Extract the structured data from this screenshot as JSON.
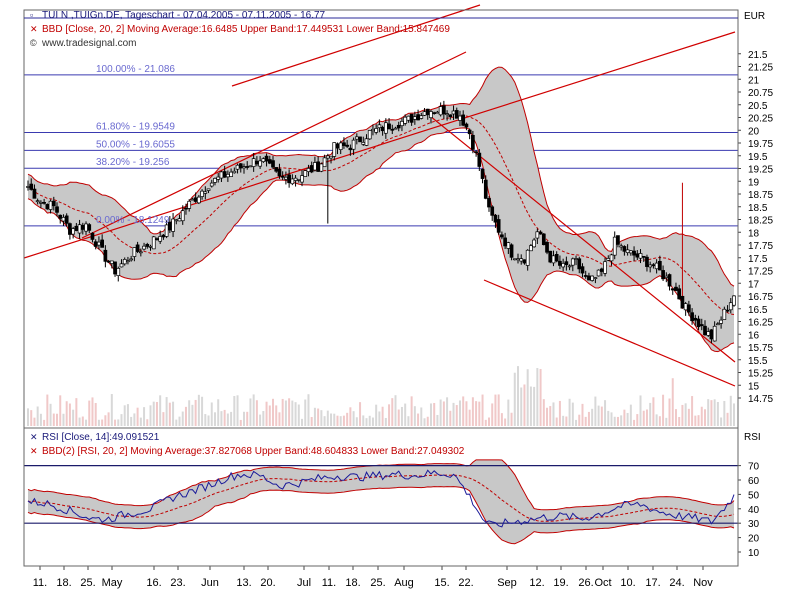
{
  "header": {
    "title": "TUI N ,TUIGn.DE, Tageschart - 07.04.2005 - 07.11.2005 - 16.77",
    "bollinger": "BBD [Close, 20, 2] Moving Average:16.6485 Upper Band:17.449531 Lower Band:15.847469",
    "source": "www.tradesignal.com",
    "currency": "EUR"
  },
  "rsi_header": {
    "title": "RSI [Close, 14]:49.091521",
    "bollinger": "BBD(2) [RSI, 20, 2] Moving Average:37.827068 Upper Band:48.604833 Lower Band:27.049302",
    "panel_label": "RSI"
  },
  "chart_data": {
    "type": "candlestick",
    "title": "TUI N ,TUIGn.DE, Tageschart - 07.04.2005 - 07.11.2005 - 16.77",
    "price_axis": {
      "ylim": [
        14.5,
        21.75
      ],
      "ticks": [
        "14.75",
        "15",
        "15.25",
        "15.5",
        "15.75",
        "16",
        "16.25",
        "16.5",
        "16.75",
        "17",
        "17.25",
        "17.5",
        "17.75",
        "18",
        "18.25",
        "18.5",
        "18.75",
        "19",
        "19.25",
        "19.5",
        "19.75",
        "20",
        "20.25",
        "20.5",
        "20.75",
        "21",
        "21.25",
        "21.5"
      ]
    },
    "x_axis_labels": [
      "11.",
      "18.",
      "25.",
      "May",
      "16.",
      "23.",
      "Jun",
      "13.",
      "20.",
      "Jul",
      "11.",
      "18.",
      "25.",
      "Aug",
      "15.",
      "22.",
      "Sep",
      "12.",
      "19.",
      "26.",
      "Oct",
      "10.",
      "17.",
      "24.",
      "Nov"
    ],
    "fibonacci": [
      {
        "label": "100.00% - 21.086",
        "value": 21.086
      },
      {
        "label": "61.80% - 19.9549",
        "value": 19.9549
      },
      {
        "label": "50.00% - 19.6055",
        "value": 19.6055
      },
      {
        "label": "38.20% - 19.256",
        "value": 19.256
      },
      {
        "label": "0.00% - 18.1249",
        "value": 18.1249
      }
    ],
    "close_anchors": [
      [
        0,
        18.9
      ],
      [
        4,
        18.6
      ],
      [
        8,
        18.5
      ],
      [
        13,
        18.05
      ],
      [
        18,
        18.15
      ],
      [
        23,
        17.6
      ],
      [
        27,
        17.25
      ],
      [
        32,
        17.55
      ],
      [
        38,
        17.8
      ],
      [
        44,
        18.1
      ],
      [
        50,
        18.55
      ],
      [
        56,
        18.95
      ],
      [
        62,
        19.15
      ],
      [
        67,
        19.3
      ],
      [
        72,
        19.45
      ],
      [
        78,
        19.05
      ],
      [
        84,
        19.1
      ],
      [
        90,
        19.3
      ],
      [
        95,
        19.65
      ],
      [
        100,
        19.7
      ],
      [
        106,
        19.95
      ],
      [
        112,
        20.1
      ],
      [
        118,
        20.2
      ],
      [
        124,
        20.4
      ],
      [
        130,
        20.4
      ],
      [
        134,
        20.3
      ],
      [
        137,
        19.95
      ],
      [
        140,
        19.3
      ],
      [
        143,
        18.4
      ],
      [
        146,
        18.05
      ],
      [
        150,
        17.6
      ],
      [
        154,
        17.5
      ],
      [
        158,
        18.0
      ],
      [
        162,
        17.5
      ],
      [
        166,
        17.3
      ],
      [
        170,
        17.4
      ],
      [
        174,
        17.0
      ],
      [
        178,
        17.2
      ],
      [
        182,
        17.8
      ],
      [
        186,
        17.6
      ],
      [
        190,
        17.5
      ],
      [
        194,
        17.35
      ],
      [
        198,
        17.1
      ],
      [
        201,
        16.85
      ],
      [
        204,
        16.5
      ],
      [
        207,
        16.3
      ],
      [
        210,
        16.05
      ],
      [
        212,
        15.95
      ],
      [
        215,
        16.3
      ],
      [
        219,
        16.77
      ]
    ],
    "rsi_axis": {
      "ylim": [
        0,
        75
      ],
      "ticks": [
        "10",
        "20",
        "30",
        "40",
        "50",
        "60",
        "70"
      ],
      "levels": [
        30,
        70
      ]
    },
    "rsi_anchors": [
      [
        0,
        45
      ],
      [
        5,
        44
      ],
      [
        10,
        41
      ],
      [
        15,
        37
      ],
      [
        20,
        33
      ],
      [
        25,
        33
      ],
      [
        30,
        36
      ],
      [
        38,
        40
      ],
      [
        45,
        48
      ],
      [
        52,
        53
      ],
      [
        58,
        58
      ],
      [
        62,
        62
      ],
      [
        66,
        64
      ],
      [
        72,
        63
      ],
      [
        78,
        56
      ],
      [
        84,
        58
      ],
      [
        90,
        61
      ],
      [
        96,
        63
      ],
      [
        102,
        62
      ],
      [
        108,
        63
      ],
      [
        114,
        64
      ],
      [
        120,
        63
      ],
      [
        126,
        65
      ],
      [
        132,
        64
      ],
      [
        135,
        55
      ],
      [
        138,
        45
      ],
      [
        141,
        33
      ],
      [
        144,
        28
      ],
      [
        148,
        30
      ],
      [
        154,
        32
      ],
      [
        160,
        34
      ],
      [
        166,
        35
      ],
      [
        172,
        33
      ],
      [
        178,
        37
      ],
      [
        184,
        42
      ],
      [
        190,
        43
      ],
      [
        196,
        38
      ],
      [
        202,
        35
      ],
      [
        208,
        33
      ],
      [
        212,
        31
      ],
      [
        215,
        38
      ],
      [
        219,
        49
      ]
    ],
    "indicators": [
      "Bollinger Bands [Close, 20, 2]",
      "RSI [Close, 14]",
      "BBD(2) [RSI, 20, 2]"
    ]
  }
}
